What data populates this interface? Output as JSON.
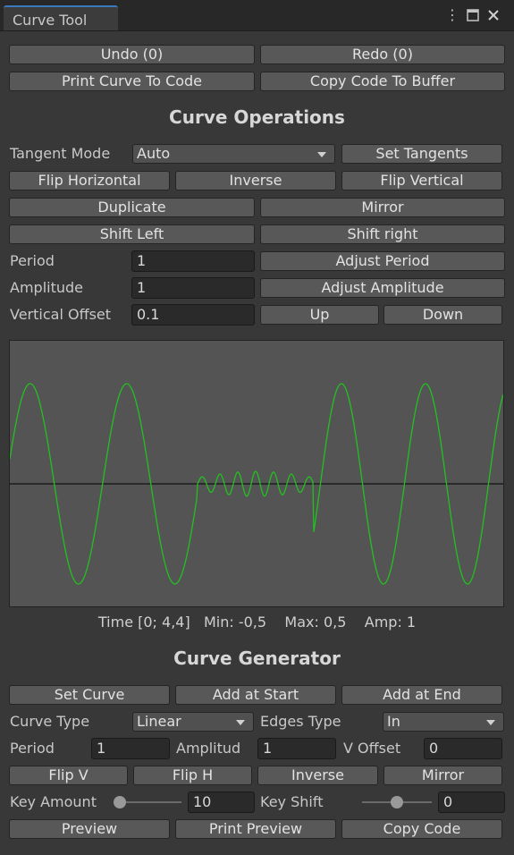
{
  "window": {
    "tab_title": "Curve Tool",
    "icons": [
      "kebab-menu-icon",
      "maximize-icon",
      "close-icon"
    ]
  },
  "top_buttons": {
    "undo": "Undo (0)",
    "redo": "Redo (0)",
    "print": "Print Curve To Code",
    "copy": "Copy Code To Buffer"
  },
  "operations": {
    "title": "Curve Operations",
    "tangent_mode_label": "Tangent Mode",
    "tangent_mode_value": "Auto",
    "set_tangents": "Set Tangents",
    "flip_horizontal": "Flip Horizontal",
    "inverse": "Inverse",
    "flip_vertical": "Flip Vertical",
    "duplicate": "Duplicate",
    "mirror": "Mirror",
    "shift_left": "Shift Left",
    "shift_right": "Shift right",
    "period_label": "Period",
    "period_value": "1",
    "adjust_period": "Adjust Period",
    "amplitude_label": "Amplitude",
    "amplitude_value": "1",
    "adjust_amplitude": "Adjust Amplitude",
    "voffset_label": "Vertical Offset",
    "voffset_value": "0.1",
    "up": "Up",
    "down": "Down"
  },
  "curve_info": "Time [0; 4,4]   Min: -0,5    Max: 0,5    Amp: 1",
  "colors": {
    "curve": "#22c022",
    "axis": "#2a2a2a",
    "curve_bg": "#545454"
  },
  "generator": {
    "title": "Curve Generator",
    "set_curve": "Set Curve",
    "add_start": "Add at Start",
    "add_end": "Add at End",
    "curve_type_label": "Curve Type",
    "curve_type_value": "Linear",
    "edges_type_label": "Edges Type",
    "edges_type_value": "In",
    "period_label": "Period",
    "period_value": "1",
    "amplitud_label": "Amplitud",
    "amplitud_value": "1",
    "voffset_label": "V Offset",
    "voffset_value": "0",
    "flip_v": "Flip V",
    "flip_h": "Flip H",
    "inverse": "Inverse",
    "mirror": "Mirror",
    "key_amount_label": "Key Amount",
    "key_amount_value": "10",
    "key_amount_slider": 0.08,
    "key_shift_label": "Key Shift",
    "key_shift_value": "0",
    "key_shift_slider": 0.5,
    "preview": "Preview",
    "print_preview": "Print Preview",
    "copy_code": "Copy Code"
  }
}
